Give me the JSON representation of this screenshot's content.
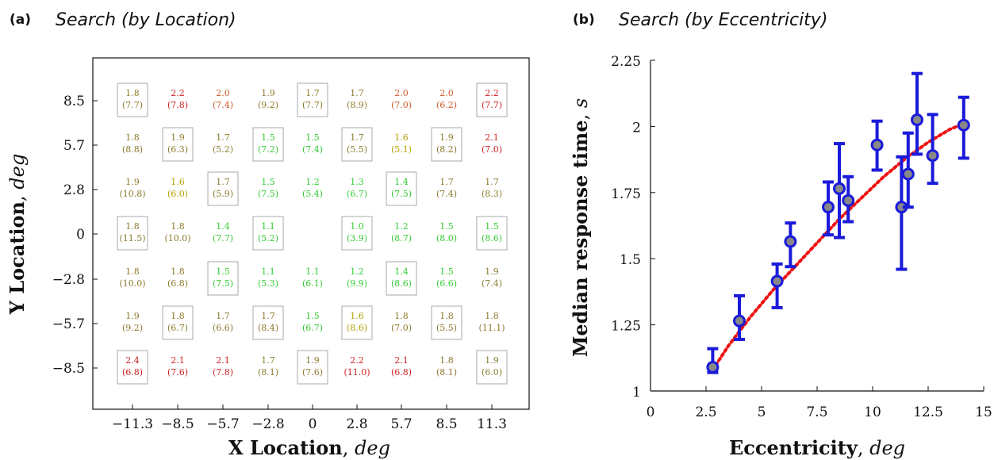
{
  "colors": {
    "scale": [
      "#33cc33",
      "#b3a000",
      "#8b7a2c",
      "#cc5a2a",
      "#cc1f1f"
    ],
    "errorbar": "#1a1adb",
    "marker_fill": "#888888",
    "fit": "#ee1111",
    "box": "#aaaaaa"
  },
  "chart_data": [
    {
      "type": "heatmap",
      "panel": "(a)",
      "title": "Search (by Location)",
      "xlabel": {
        "bold": "X Location",
        "italic": "deg"
      },
      "ylabel": {
        "bold": "Y Location",
        "italic": "deg"
      },
      "x_ticks": [
        "−11.3",
        "−8.5",
        "−5.7",
        "−2.8",
        "0",
        "2.8",
        "5.7",
        "8.5",
        "11.3"
      ],
      "y_ticks": [
        "8.5",
        "5.7",
        "2.8",
        "0",
        "−2.8",
        "−5.7",
        "−8.5"
      ],
      "grid": false,
      "rows": [
        [
          {
            "v": "1.8",
            "n": "(7.7)",
            "b": true
          },
          {
            "v": "2.2",
            "n": "(7.8)",
            "b": false
          },
          {
            "v": "2.0",
            "n": "(7.4)",
            "b": false
          },
          {
            "v": "1.9",
            "n": "(9.2)",
            "b": false
          },
          {
            "v": "1.7",
            "n": "(7.7)",
            "b": true
          },
          {
            "v": "1.7",
            "n": "(8.9)",
            "b": false
          },
          {
            "v": "2.0",
            "n": "(7.0)",
            "b": false
          },
          {
            "v": "2.0",
            "n": "(6.2)",
            "b": false
          },
          {
            "v": "2.2",
            "n": "(7.7)",
            "b": true
          }
        ],
        [
          {
            "v": "1.8",
            "n": "(8.8)",
            "b": false
          },
          {
            "v": "1.9",
            "n": "(6.3)",
            "b": true
          },
          {
            "v": "1.7",
            "n": "(5.2)",
            "b": false
          },
          {
            "v": "1.5",
            "n": "(7.2)",
            "b": true
          },
          {
            "v": "1.5",
            "n": "(7.4)",
            "b": false
          },
          {
            "v": "1.7",
            "n": "(5.5)",
            "b": true
          },
          {
            "v": "1.6",
            "n": "(5.1)",
            "b": false
          },
          {
            "v": "1.9",
            "n": "(8.2)",
            "b": true
          },
          {
            "v": "2.1",
            "n": "(7.0)",
            "b": false
          }
        ],
        [
          {
            "v": "1.9",
            "n": "(10.8)",
            "b": false
          },
          {
            "v": "1.6",
            "n": "(6.0)",
            "b": false
          },
          {
            "v": "1.7",
            "n": "(5.9)",
            "b": true
          },
          {
            "v": "1.5",
            "n": "(7.5)",
            "b": false
          },
          {
            "v": "1.2",
            "n": "(5.4)",
            "b": false
          },
          {
            "v": "1.3",
            "n": "(6.7)",
            "b": false
          },
          {
            "v": "1.4",
            "n": "(7.5)",
            "b": true
          },
          {
            "v": "1.7",
            "n": "(7.4)",
            "b": false
          },
          {
            "v": "1.7",
            "n": "(8.3)",
            "b": false
          }
        ],
        [
          {
            "v": "1.8",
            "n": "(11.5)",
            "b": true
          },
          {
            "v": "1.8",
            "n": "(10.0)",
            "b": false
          },
          {
            "v": "1.4",
            "n": "(7.7)",
            "b": false
          },
          {
            "v": "1.1",
            "n": "(5.2)",
            "b": true
          },
          null,
          {
            "v": "1.0",
            "n": "(3.9)",
            "b": true
          },
          {
            "v": "1.2",
            "n": "(8.7)",
            "b": false
          },
          {
            "v": "1.5",
            "n": "(8.0)",
            "b": false
          },
          {
            "v": "1.5",
            "n": "(8.6)",
            "b": true
          }
        ],
        [
          {
            "v": "1.8",
            "n": "(10.0)",
            "b": false
          },
          {
            "v": "1.8",
            "n": "(6.8)",
            "b": false
          },
          {
            "v": "1.5",
            "n": "(7.5)",
            "b": true
          },
          {
            "v": "1.1",
            "n": "(5.3)",
            "b": false
          },
          {
            "v": "1.1",
            "n": "(6.1)",
            "b": false
          },
          {
            "v": "1.2",
            "n": "(9.9)",
            "b": false
          },
          {
            "v": "1.4",
            "n": "(8.6)",
            "b": true
          },
          {
            "v": "1.5",
            "n": "(6.6)",
            "b": false
          },
          {
            "v": "1.9",
            "n": "(7.4)",
            "b": false
          }
        ],
        [
          {
            "v": "1.9",
            "n": "(9.2)",
            "b": false
          },
          {
            "v": "1.8",
            "n": "(6.7)",
            "b": true
          },
          {
            "v": "1.7",
            "n": "(6.6)",
            "b": false
          },
          {
            "v": "1.7",
            "n": "(8.4)",
            "b": true
          },
          {
            "v": "1.5",
            "n": "(6.7)",
            "b": false
          },
          {
            "v": "1.6",
            "n": "(8.6)",
            "b": true
          },
          {
            "v": "1.8",
            "n": "(7.0)",
            "b": false
          },
          {
            "v": "1.8",
            "n": "(5.5)",
            "b": true
          },
          {
            "v": "1.8",
            "n": "(11.1)",
            "b": false
          }
        ],
        [
          {
            "v": "2.4",
            "n": "(6.8)",
            "b": true
          },
          {
            "v": "2.1",
            "n": "(7.6)",
            "b": false
          },
          {
            "v": "2.1",
            "n": "(7.8)",
            "b": false
          },
          {
            "v": "1.7",
            "n": "(8.1)",
            "b": false
          },
          {
            "v": "1.9",
            "n": "(7.6)",
            "b": true
          },
          {
            "v": "2.2",
            "n": "(11.0)",
            "b": false
          },
          {
            "v": "2.1",
            "n": "(6.8)",
            "b": false
          },
          {
            "v": "1.8",
            "n": "(8.1)",
            "b": false
          },
          {
            "v": "1.9",
            "n": "(6.0)",
            "b": true
          }
        ]
      ]
    },
    {
      "type": "scatter",
      "panel": "(b)",
      "title": "Search (by Eccentricity)",
      "xlabel": {
        "bold": "Eccentricity",
        "italic": "deg"
      },
      "ylabel": {
        "bold": "Median response time",
        "italic": "s"
      },
      "xlim": [
        0,
        15
      ],
      "ylim": [
        1,
        2.25
      ],
      "x_ticks": [
        0,
        2.5,
        5,
        7.5,
        10,
        12.5,
        15
      ],
      "x_tick_labels": [
        "0",
        "2.5",
        "5",
        "7.5",
        "10",
        "12.5",
        "15"
      ],
      "y_ticks": [
        1,
        1.25,
        1.5,
        1.75,
        2,
        2.25
      ],
      "y_tick_labels": [
        "1",
        "1.25",
        "1.5",
        "1.75",
        "2",
        "2.25"
      ],
      "grid": false,
      "points": [
        {
          "x": 2.8,
          "y": 1.09,
          "lo": 1.07,
          "hi": 1.16
        },
        {
          "x": 4.0,
          "y": 1.265,
          "lo": 1.195,
          "hi": 1.36
        },
        {
          "x": 5.7,
          "y": 1.415,
          "lo": 1.315,
          "hi": 1.48
        },
        {
          "x": 6.3,
          "y": 1.565,
          "lo": 1.47,
          "hi": 1.635
        },
        {
          "x": 8.0,
          "y": 1.695,
          "lo": 1.59,
          "hi": 1.79
        },
        {
          "x": 8.5,
          "y": 1.765,
          "lo": 1.58,
          "hi": 1.935
        },
        {
          "x": 8.9,
          "y": 1.72,
          "lo": 1.64,
          "hi": 1.81
        },
        {
          "x": 10.2,
          "y": 1.93,
          "lo": 1.835,
          "hi": 2.02
        },
        {
          "x": 11.3,
          "y": 1.695,
          "lo": 1.46,
          "hi": 1.885
        },
        {
          "x": 11.6,
          "y": 1.82,
          "lo": 1.695,
          "hi": 1.975
        },
        {
          "x": 12.0,
          "y": 2.025,
          "lo": 1.895,
          "hi": 2.2
        },
        {
          "x": 12.7,
          "y": 1.89,
          "lo": 1.785,
          "hi": 2.045
        },
        {
          "x": 14.1,
          "y": 2.005,
          "lo": 1.88,
          "hi": 2.11
        }
      ],
      "fit_curve": [
        [
          2.8,
          1.08
        ],
        [
          3.5,
          1.17
        ],
        [
          4.5,
          1.28
        ],
        [
          5.5,
          1.38
        ],
        [
          6.5,
          1.47
        ],
        [
          7.5,
          1.56
        ],
        [
          8.5,
          1.65
        ],
        [
          9.5,
          1.73
        ],
        [
          10.5,
          1.81
        ],
        [
          11.5,
          1.88
        ],
        [
          12.5,
          1.94
        ],
        [
          13.5,
          1.99
        ],
        [
          14.1,
          2.01
        ]
      ]
    }
  ]
}
